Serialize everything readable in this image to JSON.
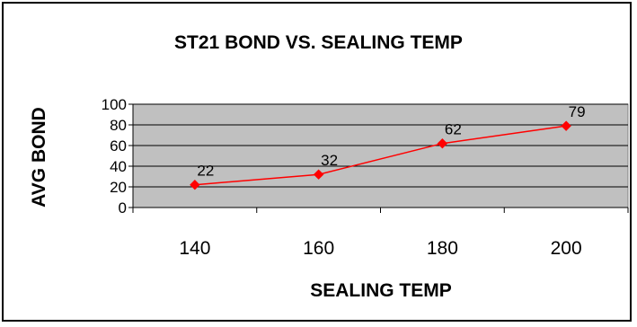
{
  "chart_data": {
    "type": "line",
    "title": "ST21 BOND VS. SEALING TEMP",
    "xlabel": "SEALING TEMP",
    "ylabel": "AVG BOND",
    "categories": [
      "140",
      "160",
      "180",
      "200"
    ],
    "series": [
      {
        "values": [
          22,
          32,
          62,
          79
        ]
      }
    ],
    "data_labels": [
      "22",
      "32",
      "62",
      "79"
    ],
    "y_ticks": [
      "0",
      "20",
      "40",
      "60",
      "80",
      "100"
    ],
    "ylim": [
      0,
      100
    ],
    "y_major_step": 20,
    "y_grid": true,
    "x_grid": false,
    "legend": "none",
    "colors": {
      "line": "#ff0000",
      "marker": "#ff0000",
      "plot_area": "#c0c0c0",
      "gridline": "#000000"
    },
    "marker": "diamond"
  }
}
